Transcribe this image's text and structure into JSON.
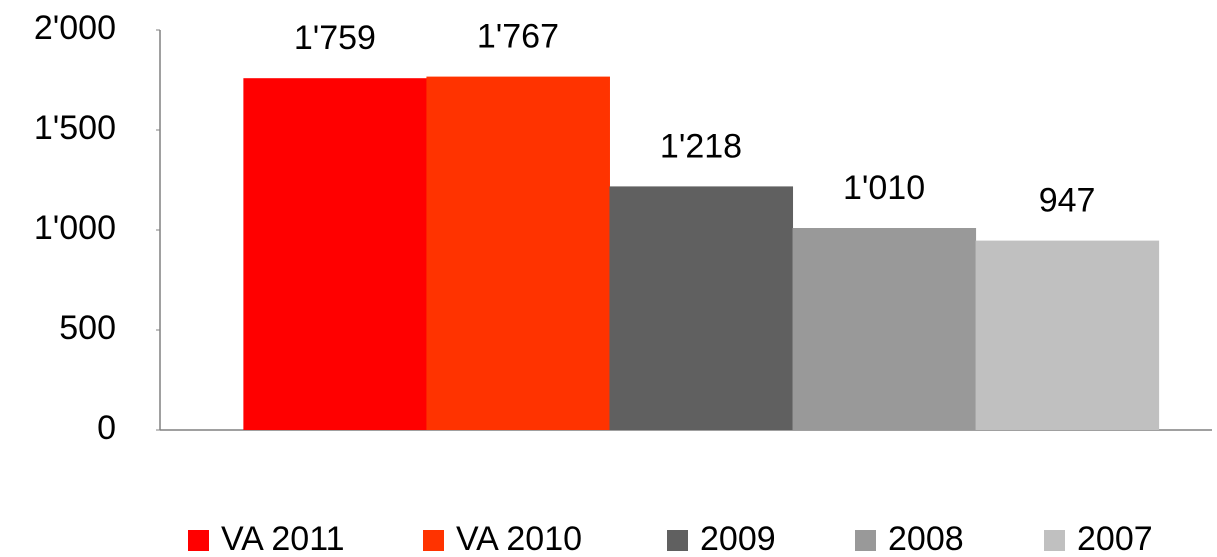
{
  "chart_data": {
    "type": "bar",
    "categories": [
      null
    ],
    "series": [
      {
        "name": "VA 2011",
        "color": "#ff0000",
        "values": [
          1759
        ],
        "value_labels": [
          "1'759"
        ]
      },
      {
        "name": "VA 2010",
        "color": "#ff3300",
        "values": [
          1767
        ],
        "value_labels": [
          "1'767"
        ]
      },
      {
        "name": "2009",
        "color": "#606060",
        "values": [
          1218
        ],
        "value_labels": [
          "1'218"
        ]
      },
      {
        "name": "2008",
        "color": "#999999",
        "values": [
          1010
        ],
        "value_labels": [
          "1'010"
        ]
      },
      {
        "name": "2007",
        "color": "#c0c0c0",
        "values": [
          947
        ],
        "value_labels": [
          "947"
        ]
      }
    ],
    "ylim": [
      0,
      2000
    ],
    "yticks": [
      0,
      500,
      {
        "value": 1000,
        "label": "1'000"
      },
      {
        "value": 1500,
        "label": "1'500"
      },
      {
        "value": 2000,
        "label": "2'000"
      }
    ],
    "grid": false,
    "legend": "bottom"
  }
}
